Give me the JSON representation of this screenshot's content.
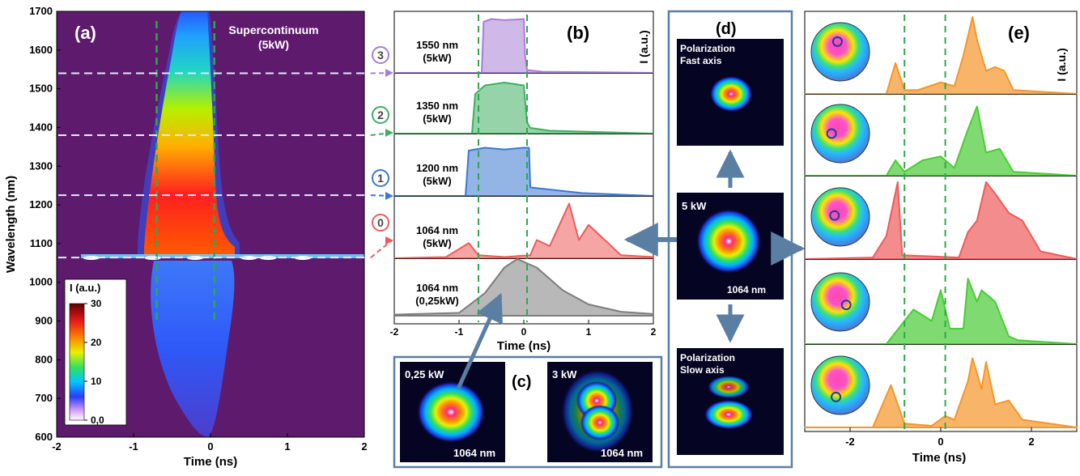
{
  "colors": {
    "purple": "#a77fd6",
    "green": "#3fae63",
    "blue": "#3a78d0",
    "red": "#ee5b5b",
    "gray": "#7d7d7d",
    "orange": "#f5962a",
    "lime": "#49cc34",
    "dashgreen": "#2ea84b",
    "bg": "#5e1a6d",
    "frame": "#5b7fa3"
  },
  "panels": {
    "a": {
      "letter": "(a)",
      "title_line1": "Supercontinuum",
      "title_line2": "(5kW)",
      "ylabel": "Wavelength (nm)",
      "xlabel": "Time (ns)",
      "colorbar_label": "I (a.u.)"
    },
    "b": {
      "letter": "(b)",
      "ylabel": "I (a.u.)",
      "xlabel": "Time (ns)"
    },
    "c": {
      "letter": "(c)",
      "img1_label": "0,25 kW",
      "img1_wl": "1064 nm",
      "img2_label": "3 kW",
      "img2_wl": "1064 nm"
    },
    "d": {
      "letter": "(d)",
      "top_line1": "Polarization",
      "top_line2": "Fast axis",
      "mid_label": "5 kW",
      "mid_wl": "1064 nm",
      "bot_line1": "Polarization",
      "bot_line2": "Slow axis"
    },
    "e": {
      "letter": "(e)",
      "ylabel": "I (a.u.)",
      "xlabel": "Time (ns)"
    }
  },
  "chart_data": [
    {
      "type": "heatmap",
      "id": "a",
      "x_ticks": [
        "-2",
        "-1",
        "0",
        "1",
        "2"
      ],
      "xlim": [
        -2,
        2
      ],
      "y_ticks": [
        "600",
        "700",
        "800",
        "900",
        "1000",
        "1100",
        "1200",
        "1300",
        "1400",
        "1500",
        "1600",
        "1700"
      ],
      "ylim": [
        600,
        1700
      ],
      "colorbar_ticks": [
        "0,0",
        "10",
        "20",
        "30"
      ],
      "colorbar_range": [
        0,
        30
      ],
      "marker_lines_x": [
        -0.7,
        0.05
      ],
      "marker_lines_y": [
        1064,
        1225,
        1380,
        1540
      ],
      "marker_labels": [
        "0",
        "1",
        "2",
        "3"
      ]
    },
    {
      "type": "area",
      "id": "b",
      "x_ticks": [
        "-2",
        "-1",
        "0",
        "1",
        "2"
      ],
      "xlim": [
        -2,
        2
      ],
      "series": [
        {
          "name": "1550 nm",
          "power": "(5kW)",
          "label_1": "1550 nm",
          "label_2": "(5kW)",
          "marker": "3",
          "x": [
            -2,
            -0.65,
            -0.62,
            -0.5,
            -0.3,
            0,
            0.02,
            0.05,
            0.3,
            2
          ],
          "y": [
            0,
            0,
            0.9,
            0.95,
            0.93,
            0.95,
            0.3,
            0.05,
            0.02,
            0
          ]
        },
        {
          "name": "1350 nm",
          "power": "(5kW)",
          "label_1": "1350 nm",
          "label_2": "(5kW)",
          "marker": "2",
          "x": [
            -2,
            -0.8,
            -0.75,
            -0.6,
            -0.3,
            0,
            0.05,
            0.1,
            0.4,
            2
          ],
          "y": [
            0,
            0,
            0.7,
            0.85,
            0.9,
            0.85,
            0.2,
            0.1,
            0.05,
            0
          ]
        },
        {
          "name": "1200 nm",
          "power": "(5kW)",
          "label_1": "1200 nm",
          "label_2": "(5kW)",
          "marker": "1",
          "x": [
            -2,
            -0.9,
            -0.85,
            -0.6,
            -0.3,
            0,
            0.08,
            0.1,
            0.5,
            0.9,
            2
          ],
          "y": [
            0,
            0,
            0.8,
            0.85,
            0.82,
            0.85,
            0.85,
            0.15,
            0.1,
            0.05,
            0
          ]
        },
        {
          "name": "1064 nm",
          "power": "(5kW)",
          "label_1": "1064 nm",
          "label_2": "(5kW)",
          "marker": "0",
          "x": [
            -2,
            -1.2,
            -0.85,
            -0.7,
            -0.3,
            0.1,
            0.2,
            0.4,
            0.7,
            0.85,
            1.0,
            1.2,
            1.5,
            2
          ],
          "y": [
            0,
            0.02,
            0.25,
            0.05,
            0.02,
            0.05,
            0.3,
            0.2,
            0.9,
            0.3,
            0.55,
            0.35,
            0.05,
            0.02
          ]
        },
        {
          "name": "1064 nm",
          "power": "(0,25kW)",
          "label_1": "1064 nm",
          "label_2": "(0,25kW)",
          "marker": "",
          "x": [
            -2,
            -1,
            -0.6,
            -0.3,
            -0.1,
            0.2,
            0.6,
            1,
            1.5,
            2
          ],
          "y": [
            0.02,
            0.05,
            0.4,
            0.85,
            1.0,
            0.85,
            0.45,
            0.2,
            0.07,
            0.03
          ]
        }
      ]
    },
    {
      "type": "area",
      "id": "e",
      "x_ticks": [
        "-2",
        "0",
        "2"
      ],
      "xlim": [
        -3,
        3
      ],
      "marker_lines_x": [
        -0.8,
        0.1
      ],
      "series": [
        {
          "x": [
            -3,
            -1.2,
            -1,
            -0.8,
            -0.5,
            0,
            0.3,
            0.5,
            0.7,
            0.8,
            1,
            1.2,
            1.4,
            1.6,
            3
          ],
          "y": [
            0,
            0,
            0.4,
            0.05,
            0.05,
            0.15,
            0.1,
            0.5,
            1.0,
            0.7,
            0.3,
            0.35,
            0.3,
            0.05,
            0
          ]
        },
        {
          "x": [
            -3,
            -1.2,
            -1,
            -0.8,
            -0.4,
            0,
            0.3,
            0.6,
            0.8,
            1.0,
            1.3,
            1.6,
            3
          ],
          "y": [
            0,
            0,
            0.2,
            0.05,
            0.2,
            0.25,
            0.1,
            0.6,
            0.9,
            0.3,
            0.35,
            0.05,
            0
          ]
        },
        {
          "x": [
            -3,
            -1.5,
            -1.2,
            -0.95,
            -0.85,
            0.4,
            0.6,
            0.8,
            1.0,
            1.2,
            1.5,
            1.8,
            2.2,
            3
          ],
          "y": [
            0,
            0.02,
            0.3,
            1.0,
            0.05,
            0.02,
            0.35,
            0.5,
            1.0,
            0.85,
            0.6,
            0.5,
            0.1,
            0
          ]
        },
        {
          "x": [
            -3,
            -1.2,
            -1,
            -0.6,
            -0.2,
            0,
            0.2,
            0.5,
            0.6,
            0.8,
            0.9,
            1.2,
            1.5,
            1.7,
            3
          ],
          "y": [
            0,
            0,
            0.15,
            0.45,
            0.3,
            0.7,
            0.2,
            0.2,
            0.85,
            0.55,
            0.7,
            0.55,
            0.1,
            0.05,
            0
          ]
        },
        {
          "x": [
            -3,
            -1.5,
            -1.1,
            -0.8,
            -0.2,
            0.1,
            0.3,
            0.6,
            0.7,
            0.9,
            1.0,
            1.2,
            1.5,
            1.8,
            3
          ],
          "y": [
            0,
            0,
            0.55,
            0.05,
            0.02,
            0.15,
            0.1,
            0.6,
            0.9,
            0.5,
            0.85,
            0.3,
            0.35,
            0.1,
            0
          ]
        }
      ]
    }
  ]
}
